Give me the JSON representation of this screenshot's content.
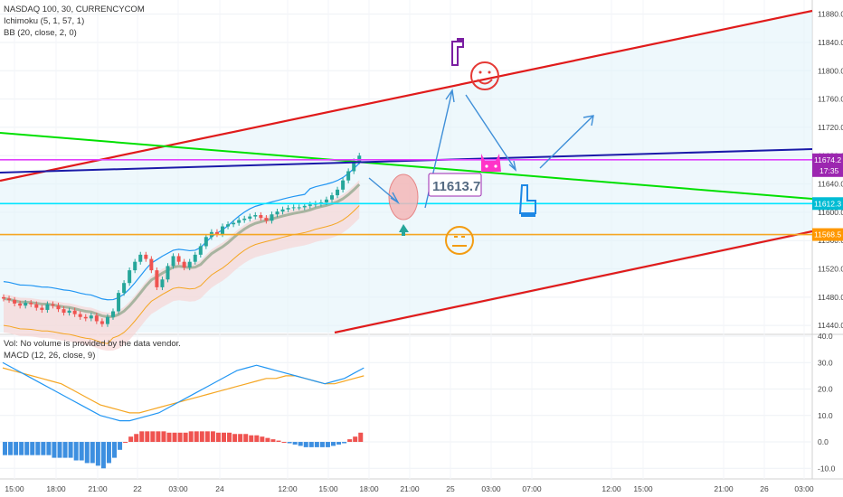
{
  "legend": {
    "symbol": "NASDAQ 100, 30, CURRENCYCOM",
    "ichimoku": "Ichimoku (5, 1, 57, 1)",
    "bb": "BB (20, close, 2, 0)",
    "vol": "Vol: No volume is provided by the data vendor.",
    "macd": "MACD (12, 26, close, 9)"
  },
  "annotation": {
    "callout": "11613.7"
  },
  "price_badges": [
    {
      "value": "11674.2",
      "color": "#9c27b0",
      "sub": "17:35"
    },
    {
      "value": "11612.3",
      "color": "#00bcd4"
    },
    {
      "value": "11568.5",
      "color": "#ff9800"
    }
  ],
  "colors": {
    "up": "#26a69a",
    "down": "#ef5350",
    "bb_line": "#2196f3",
    "cloud": "#f6d5d5",
    "baseline": "#a8b4a0",
    "orange": "#f5a623",
    "red_channel": "#e01b1b",
    "green_trend": "#00e000",
    "blue_trend": "#1a1aa8",
    "magenta": "#e040fb",
    "cyan": "#00e5ff"
  },
  "chart_data": [
    {
      "type": "line",
      "title": "NASDAQ 100, 30, CURRENCYCOM",
      "x_ticks": [
        "15:00",
        "18:00",
        "21:00",
        "22",
        "03:00",
        "24",
        "12:00",
        "15:00",
        "18:00",
        "21:00",
        "25",
        "03:00",
        "07:00",
        "12:00",
        "15:00",
        "21:00",
        "26",
        "03:00"
      ],
      "y_ticks": [
        11440.0,
        11480.0,
        11520.0,
        11560.0,
        11600.0,
        11640.0,
        11680.0,
        11720.0,
        11760.0,
        11800.0,
        11840.0,
        11880.0
      ],
      "ylim": [
        11430,
        11900
      ],
      "close": [
        11478,
        11476,
        11471,
        11468,
        11472,
        11470,
        11465,
        11462,
        11470,
        11468,
        11463,
        11458,
        11461,
        11456,
        11452,
        11450,
        11454,
        11446,
        11442,
        11452,
        11460,
        11486,
        11500,
        11518,
        11530,
        11540,
        11534,
        11518,
        11494,
        11505,
        11524,
        11538,
        11530,
        11522,
        11530,
        11540,
        11552,
        11565,
        11572,
        11569,
        11580,
        11583,
        11585,
        11589,
        11591,
        11594,
        11596,
        11592,
        11588,
        11597,
        11601,
        11604,
        11606,
        11607,
        11607,
        11609,
        11611,
        11612,
        11614,
        11618,
        11624,
        11632,
        11645,
        11658,
        11672,
        11680
      ],
      "horizontal_levels": [
        11674.2,
        11612.3,
        11568.5
      ],
      "callout_value": 11613.7
    },
    {
      "type": "bar",
      "title": "MACD (12, 26, close, 9)",
      "y_ticks": [
        -10.0,
        0.0,
        10.0,
        20.0,
        30.0,
        40.0
      ],
      "ylim": [
        -14,
        40
      ],
      "histogram": [
        -5,
        -5,
        -5,
        -5,
        -5,
        -5,
        -5,
        -5,
        -5,
        -6,
        -6,
        -6,
        -6,
        -7,
        -7,
        -8,
        -8,
        -9,
        -10,
        -8,
        -6,
        -3,
        0,
        2,
        3,
        4,
        4,
        4,
        4,
        4,
        3.5,
        3.5,
        3.5,
        3.5,
        4,
        4,
        4,
        4,
        4,
        3.5,
        3.5,
        3.5,
        3,
        3,
        3,
        2.5,
        2.5,
        2,
        1.5,
        1,
        0.5,
        0,
        -0.5,
        -1,
        -1.5,
        -2,
        -2,
        -2,
        -2,
        -2,
        -1.5,
        -1,
        -0.5,
        1,
        2,
        3.5
      ],
      "macd": [
        30,
        28,
        26,
        24,
        22,
        20,
        18,
        16,
        14,
        12,
        10,
        9,
        8,
        8,
        9,
        10,
        11,
        13,
        15,
        17,
        19,
        21,
        23,
        25,
        27,
        28,
        29,
        28,
        27,
        26,
        25,
        24,
        23,
        22,
        23,
        24,
        26,
        28
      ],
      "signal": [
        28,
        27,
        26,
        25,
        24,
        23,
        22,
        20,
        18,
        16,
        14,
        13,
        12,
        11,
        11,
        12,
        13,
        14,
        15,
        16,
        17,
        18,
        19,
        20,
        21,
        22,
        23,
        24,
        24,
        25,
        25,
        24,
        23,
        22,
        22,
        23,
        24,
        25
      ]
    }
  ]
}
